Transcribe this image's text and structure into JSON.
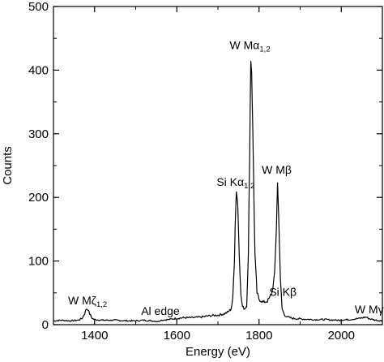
{
  "chart_data": {
    "type": "line",
    "title": "",
    "xlabel": "Energy (eV)",
    "ylabel": "Counts",
    "xlim": [
      1300,
      2100
    ],
    "ylim": [
      0,
      500
    ],
    "x_ticks": [
      1400,
      1600,
      1800,
      2000
    ],
    "y_ticks": [
      0,
      100,
      200,
      300,
      400,
      500
    ],
    "grid": false,
    "legend": "none",
    "line_color": "#000000",
    "series": [
      {
        "x": [
          1300,
          1320,
          1340,
          1360,
          1370,
          1376,
          1380,
          1384,
          1388,
          1394,
          1400,
          1420,
          1450,
          1480,
          1500,
          1520,
          1540,
          1555,
          1560,
          1580,
          1600,
          1620,
          1640,
          1660,
          1680,
          1700,
          1715,
          1725,
          1732,
          1736,
          1740,
          1742,
          1745,
          1748,
          1752,
          1756,
          1760,
          1765,
          1770,
          1774,
          1777,
          1780,
          1782,
          1785,
          1790,
          1795,
          1800,
          1810,
          1820,
          1826,
          1832,
          1838,
          1842,
          1845,
          1848,
          1852,
          1856,
          1862,
          1870,
          1880,
          1900,
          1930,
          1960,
          1990,
          2020,
          2045,
          2060,
          2070,
          2085,
          2100
        ],
        "y": [
          6,
          7,
          6,
          7,
          10,
          18,
          25,
          24,
          17,
          10,
          8,
          7,
          7,
          6,
          6,
          7,
          6,
          5,
          7,
          8,
          10,
          11,
          11,
          12,
          14,
          15,
          17,
          20,
          25,
          40,
          100,
          160,
          212,
          190,
          110,
          45,
          28,
          25,
          30,
          110,
          260,
          418,
          400,
          300,
          110,
          50,
          40,
          35,
          37,
          42,
          52,
          80,
          150,
          222,
          170,
          70,
          25,
          15,
          12,
          10,
          9,
          8,
          8,
          7,
          8,
          10,
          12,
          9,
          7,
          6
        ]
      }
    ],
    "annotations": [
      {
        "main": "W M",
        "greek": "ζ",
        "sub": "1,2",
        "x": 1383,
        "y": 32
      },
      {
        "main": "Al edge",
        "greek": "",
        "sub": "",
        "x": 1560,
        "y": 15
      },
      {
        "main": "Si K",
        "greek": "α",
        "sub": "1,2",
        "x": 1743,
        "y": 218
      },
      {
        "main": "W M",
        "greek": "α",
        "sub": "1,2",
        "x": 1778,
        "y": 433
      },
      {
        "main": "W M",
        "greek": "β",
        "sub": "",
        "x": 1843,
        "y": 237
      },
      {
        "main": "Si K",
        "greek": "β",
        "sub": "",
        "x": 1858,
        "y": 45
      },
      {
        "main": "W M",
        "greek": "γ",
        "sub": "",
        "x": 2068,
        "y": 18
      }
    ]
  }
}
